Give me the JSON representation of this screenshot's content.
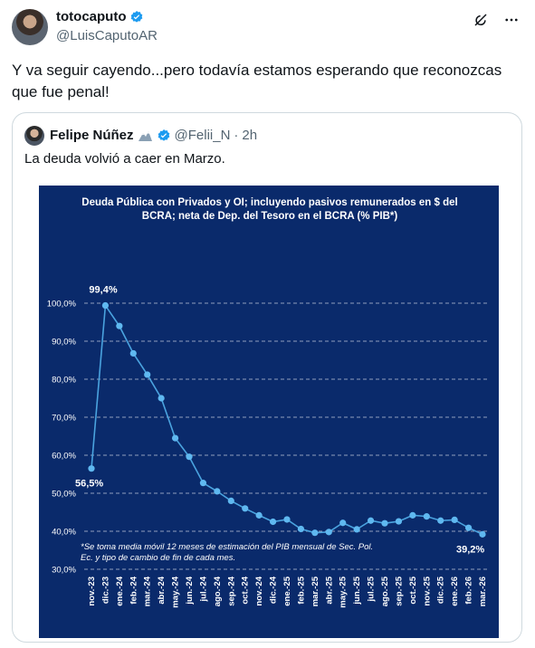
{
  "tweet": {
    "display_name": "totocaputo",
    "handle": "@LuisCaputoAR",
    "text": "Y va seguir cayendo...pero todavía estamos esperando que reconozcas que fue penal!"
  },
  "quote": {
    "display_name": "Felipe Núñez",
    "handle": "@Felii_N",
    "separator": "·",
    "time": "2h",
    "text": "La deuda volvió a caer en Marzo."
  },
  "colors": {
    "chart_background": "#0a2a6b",
    "line": "#4aa3df",
    "point": "#5fb8f0",
    "verified": "#1d9bf0",
    "text_secondary": "#536471"
  },
  "icons": {
    "verified": "verified-badge-icon",
    "grok": "grok-icon",
    "more": "more-icon",
    "emoji": "mountain-emoji-icon"
  },
  "chart_data": {
    "type": "line",
    "title": "Deuda Pública con Privados y OI; incluyendo pasivos remunerados en $ del BCRA; neta de Dep. del Tesoro en el BCRA (% PIB*)",
    "footnote": "*Se toma media móvil 12 meses de estimación del PIB mensual de Sec. Pol. Ec. y tipo de cambio de fin de cada mes.",
    "categories": [
      "nov.-23",
      "dic.-23",
      "ene.-24",
      "feb.-24",
      "mar.-24",
      "abr.-24",
      "may.-24",
      "jun.-24",
      "jul.-24",
      "ago.-24",
      "sep.-24",
      "oct.-24",
      "nov.-24",
      "dic.-24",
      "ene.-25",
      "feb.-25",
      "mar.-25",
      "abr.-25",
      "may.-25",
      "jun.-25",
      "jul.-25",
      "ago.-25",
      "sep.-25",
      "oct.-25",
      "nov.-25",
      "dic.-25",
      "ene.-26",
      "feb.-26",
      "mar.-26"
    ],
    "values": [
      56.5,
      99.4,
      94.0,
      86.8,
      81.2,
      75.0,
      64.5,
      59.6,
      52.7,
      50.5,
      48.0,
      46.0,
      44.2,
      42.5,
      43.1,
      40.6,
      39.6,
      39.8,
      42.2,
      40.5,
      42.8,
      42.1,
      42.6,
      44.2,
      43.9,
      42.8,
      43.0,
      40.9,
      39.2
    ],
    "ylim": [
      30,
      100
    ],
    "yticks": [
      "30,0%",
      "40,0%",
      "50,0%",
      "60,0%",
      "70,0%",
      "80,0%",
      "90,0%",
      "100,0%"
    ],
    "annotations": [
      {
        "label": "99,4%",
        "index": 1
      },
      {
        "label": "56,5%",
        "index": 0
      },
      {
        "label": "39,2%",
        "index": 28
      }
    ],
    "grid": "horizontal-dashed"
  }
}
